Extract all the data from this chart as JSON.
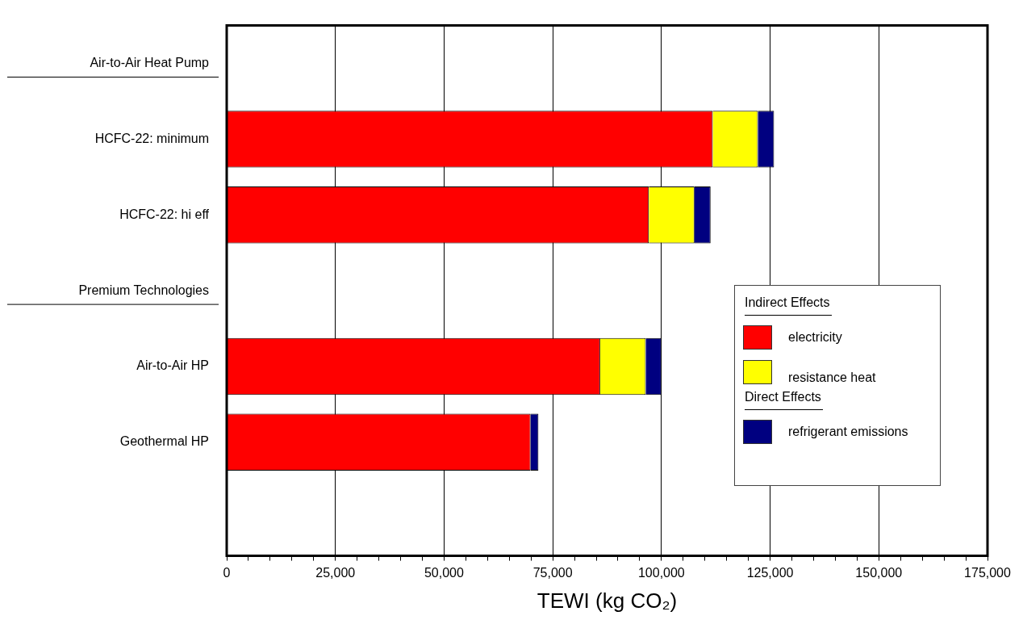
{
  "chart_data": {
    "type": "bar",
    "orientation": "horizontal",
    "stacked": true,
    "categories": [
      "Air-to-Air Heat Pump",
      "HCFC-22: minimum",
      "HCFC-22: hi eff",
      "Premium Technologies",
      "Air-to-Air HP",
      "Geothermal HP",
      null
    ],
    "series": [
      {
        "name": "electricity",
        "color": "#ff0000",
        "values": [
          null,
          111800,
          97100,
          null,
          85900,
          69900,
          null
        ]
      },
      {
        "name": "resistance heat",
        "color": "#ffff00",
        "values": [
          null,
          10400,
          10500,
          null,
          10500,
          null,
          null
        ]
      },
      {
        "name": "refrigerant emissions",
        "color": "#000080",
        "values": [
          null,
          3700,
          3700,
          null,
          3600,
          1800,
          null
        ]
      }
    ],
    "xlabel": "TEWI (kg CO₂)",
    "xlim": [
      0,
      175000
    ],
    "xticks": [
      0,
      {
        "value": 5000,
        "label": null
      },
      {
        "value": 10000,
        "label": null
      },
      {
        "value": 15000,
        "label": null
      },
      {
        "value": 20000,
        "label": null
      },
      {
        "value": 25000,
        "label": "25,000"
      },
      {
        "value": 30000,
        "label": null
      },
      {
        "value": 35000,
        "label": null
      },
      {
        "value": 40000,
        "label": null
      },
      {
        "value": 45000,
        "label": null
      },
      {
        "value": 50000,
        "label": "50,000"
      },
      {
        "value": 55000,
        "label": null
      },
      {
        "value": 60000,
        "label": null
      },
      {
        "value": 65000,
        "label": null
      },
      {
        "value": 70000,
        "label": null
      },
      {
        "value": 75000,
        "label": "75,000"
      },
      {
        "value": 80000,
        "label": null
      },
      {
        "value": 85000,
        "label": null
      },
      {
        "value": 90000,
        "label": null
      },
      {
        "value": 95000,
        "label": null
      },
      {
        "value": 100000,
        "label": "100,000"
      },
      {
        "value": 105000,
        "label": null
      },
      {
        "value": 110000,
        "label": null
      },
      {
        "value": 115000,
        "label": null
      },
      {
        "value": 120000,
        "label": null
      },
      {
        "value": 125000,
        "label": "125,000"
      },
      {
        "value": 130000,
        "label": null
      },
      {
        "value": 135000,
        "label": null
      },
      {
        "value": 140000,
        "label": null
      },
      {
        "value": 145000,
        "label": null
      },
      {
        "value": 150000,
        "label": "150,000"
      },
      {
        "value": 155000,
        "label": null
      },
      {
        "value": 160000,
        "label": null
      },
      {
        "value": 165000,
        "label": null
      },
      {
        "value": 170000,
        "label": null
      },
      {
        "value": 175000,
        "label": "175,000"
      }
    ],
    "grid": "x",
    "legend": "bottom right",
    "legend_title": "Indirect Effects",
    "annotations": [
      "Direct Effects"
    ]
  }
}
